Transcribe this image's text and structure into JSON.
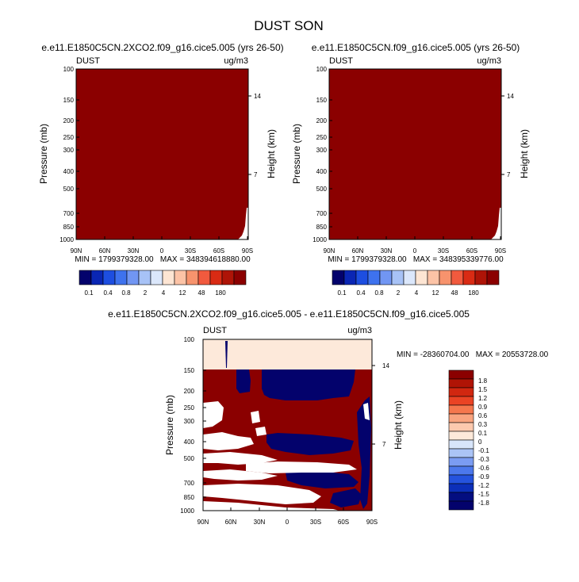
{
  "figure": {
    "title": "DUST SON"
  },
  "chart_data": [
    {
      "type": "heatmap",
      "title": "e.e11.E1850C5CN.2XCO2.f09_g16.cice5.005 (yrs 26-50)",
      "left_label": "DUST",
      "right_label": "ug/m3",
      "xlabel": "",
      "ylabel": "Pressure (mb)",
      "right_axis_label": "Height (km)",
      "x_ticks": [
        "90N",
        "60N",
        "30N",
        "0",
        "30S",
        "60S",
        "90S"
      ],
      "y_ticks": [
        "100",
        "150",
        "200",
        "250",
        "300",
        "400",
        "500",
        "700",
        "850",
        "1000"
      ],
      "height_ticks": [
        "14",
        "7"
      ],
      "stats_text": "MIN = 1799379328.00   MAX = 348394618880.00",
      "colorbar_labels": [
        "0.1",
        "0.4",
        "0.8",
        "2",
        "4",
        "12",
        "48",
        "180"
      ],
      "colorbar_colors": [
        "#03026c",
        "#0a26b4",
        "#1d4ee0",
        "#3e72ee",
        "#7196f3",
        "#a7c2f6",
        "#dbe7fb",
        "#fde5d3",
        "#fcc3a6",
        "#f7936d",
        "#f15a3e",
        "#d92b14",
        "#ae1407",
        "#8b0000"
      ],
      "field_color": "#8b0000"
    },
    {
      "type": "heatmap",
      "title": "e.e11.E1850C5CN.f09_g16.cice5.005 (yrs 26-50)",
      "left_label": "DUST",
      "right_label": "ug/m3",
      "xlabel": "",
      "ylabel": "Pressure (mb)",
      "right_axis_label": "Height (km)",
      "x_ticks": [
        "90N",
        "60N",
        "30N",
        "0",
        "30S",
        "60S",
        "90S"
      ],
      "y_ticks": [
        "100",
        "150",
        "200",
        "250",
        "300",
        "400",
        "500",
        "700",
        "850",
        "1000"
      ],
      "height_ticks": [
        "14",
        "7"
      ],
      "stats_text": "MIN = 1799379328.00   MAX = 348395339776.00",
      "colorbar_labels": [
        "0.1",
        "0.4",
        "0.8",
        "2",
        "4",
        "12",
        "48",
        "180"
      ],
      "colorbar_colors": [
        "#03026c",
        "#0a26b4",
        "#1d4ee0",
        "#3e72ee",
        "#7196f3",
        "#a7c2f6",
        "#dbe7fb",
        "#fde5d3",
        "#fcc3a6",
        "#f7936d",
        "#f15a3e",
        "#d92b14",
        "#ae1407",
        "#8b0000"
      ],
      "field_color": "#8b0000"
    },
    {
      "type": "heatmap",
      "title": "e.e11.E1850C5CN.2XCO2.f09_g16.cice5.005 - e.e11.E1850C5CN.f09_g16.cice5.005",
      "left_label": "DUST",
      "right_label": "ug/m3",
      "xlabel": "",
      "ylabel": "Pressure (mb)",
      "right_axis_label": "Height (km)",
      "x_ticks": [
        "90N",
        "60N",
        "30N",
        "0",
        "30S",
        "60S",
        "90S"
      ],
      "y_ticks": [
        "100",
        "150",
        "200",
        "250",
        "300",
        "400",
        "500",
        "700",
        "850",
        "1000"
      ],
      "height_ticks": [
        "14",
        "7"
      ],
      "stats_text": "MIN = -28360704.00   MAX = 20553728.00",
      "colorbar_labels": [
        "1.8",
        "1.5",
        "1.2",
        "0.9",
        "0.6",
        "0.3",
        "0.1",
        "0",
        "-0.1",
        "-0.3",
        "-0.6",
        "-0.9",
        "-1.2",
        "-1.5",
        "-1.8"
      ],
      "colorbar_colors": [
        "#8b0000",
        "#b01405",
        "#d12710",
        "#ea4324",
        "#f5774d",
        "#f9a47f",
        "#fcc9ae",
        "#fde9da",
        "#d8e5fa",
        "#abc4f6",
        "#7b9cf2",
        "#4c78ec",
        "#2553de",
        "#0c2fb9",
        "#040e80",
        "#03026c"
      ],
      "colors": {
        "positive": "#8b0000",
        "near_zero_positive": "#fde9da",
        "negative": "#03026c",
        "zero": "#ffffff"
      }
    }
  ]
}
